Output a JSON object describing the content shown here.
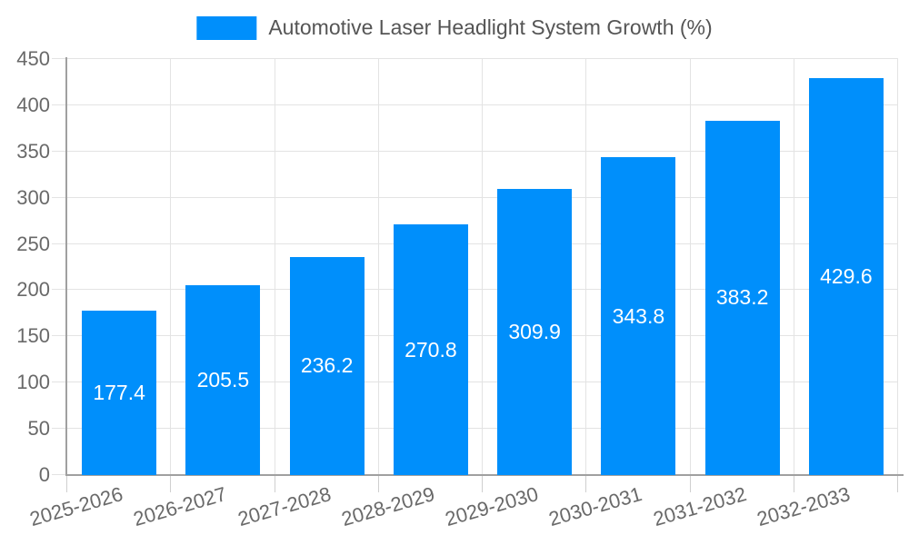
{
  "chart_data": {
    "type": "bar",
    "title": "Automotive Laser Headlight System Growth (%)",
    "legend": [
      "Automotive Laser Headlight System Growth (%)"
    ],
    "legend_position": "top",
    "categories": [
      "2025-2026",
      "2026-2027",
      "2027-2028",
      "2028-2029",
      "2029-2030",
      "2030-2031",
      "2031-2032",
      "2032-2033"
    ],
    "values": [
      177.4,
      205.5,
      236.2,
      270.8,
      309.9,
      343.8,
      383.2,
      429.6
    ],
    "value_labels": [
      "177.4",
      "205.5",
      "236.2",
      "270.8",
      "309.9",
      "343.8",
      "383.2",
      "429.6"
    ],
    "xlabel": "",
    "ylabel": "",
    "ylim": [
      0,
      450
    ],
    "ytick_step": 50,
    "yticks": [
      0,
      50,
      100,
      150,
      200,
      250,
      300,
      350,
      400,
      450
    ],
    "grid": true,
    "colors": {
      "bar": "#008FFB",
      "value_label": "#FFFFFF",
      "tick_label": "#696969",
      "legend_text": "#555555",
      "gridline": "#E3E3E3",
      "tick": "#CFCFCF",
      "axis": "#A0A0A0"
    }
  }
}
